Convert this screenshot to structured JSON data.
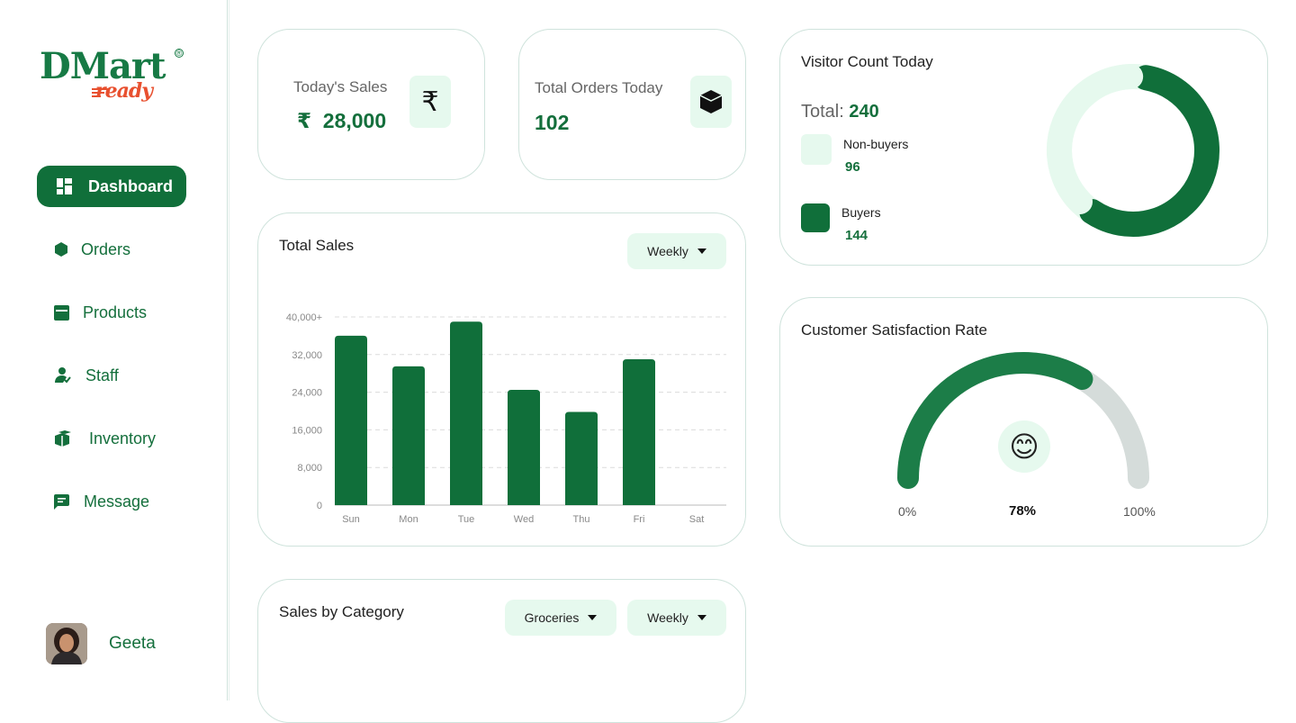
{
  "brand": {
    "name": "DMart",
    "sub": "ready",
    "reg": "®"
  },
  "sidebar": {
    "items": [
      {
        "label": "Dashboard",
        "icon": "dashboard-icon",
        "active": true
      },
      {
        "label": "Orders",
        "icon": "orders-icon"
      },
      {
        "label": "Products",
        "icon": "products-icon"
      },
      {
        "label": "Staff",
        "icon": "staff-icon"
      },
      {
        "label": "Inventory",
        "icon": "inventory-icon"
      },
      {
        "label": "Message",
        "icon": "message-icon"
      }
    ],
    "user": {
      "name": "Geeta"
    }
  },
  "stats": {
    "sales": {
      "label": "Today's Sales",
      "currency": "₹",
      "value": "28,000",
      "icon": "rupee-icon",
      "icon_glyph": "₹"
    },
    "orders": {
      "label": "Total Orders Today",
      "value": "102",
      "icon": "box-icon"
    }
  },
  "visitors": {
    "title": "Visitor Count Today",
    "total_label": "Total:",
    "total_value": "240",
    "non_buyers": {
      "label": "Non-buyers",
      "value": "96"
    },
    "buyers": {
      "label": "Buyers",
      "value": "144"
    }
  },
  "total_sales": {
    "title": "Total Sales",
    "period": "Weekly"
  },
  "satisfaction": {
    "title": "Customer Satisfaction Rate",
    "min_label": "0%",
    "value_label": "78%",
    "max_label": "100%",
    "value": 78,
    "emoji": "😊"
  },
  "category": {
    "title": "Sales by Category",
    "category_filter": "Groceries",
    "period": "Weekly"
  },
  "colors": {
    "primary": "#106f3a",
    "light": "#e6f9ee",
    "gauge_track": "#d5dcda"
  },
  "chart_data": {
    "type": "bar",
    "title": "Total Sales",
    "categories": [
      "Sun",
      "Mon",
      "Tue",
      "Wed",
      "Thu",
      "Fri",
      "Sat"
    ],
    "values": [
      36000,
      29500,
      39000,
      24500,
      19800,
      31000,
      0
    ],
    "ytick_labels": [
      "0",
      "8,000",
      "16,000",
      "24,000",
      "32,000",
      "40,000+"
    ],
    "yticks": [
      0,
      8000,
      16000,
      24000,
      32000,
      40000
    ],
    "ylim": [
      0,
      40000
    ],
    "xlabel": "",
    "ylabel": "",
    "grid": true
  }
}
